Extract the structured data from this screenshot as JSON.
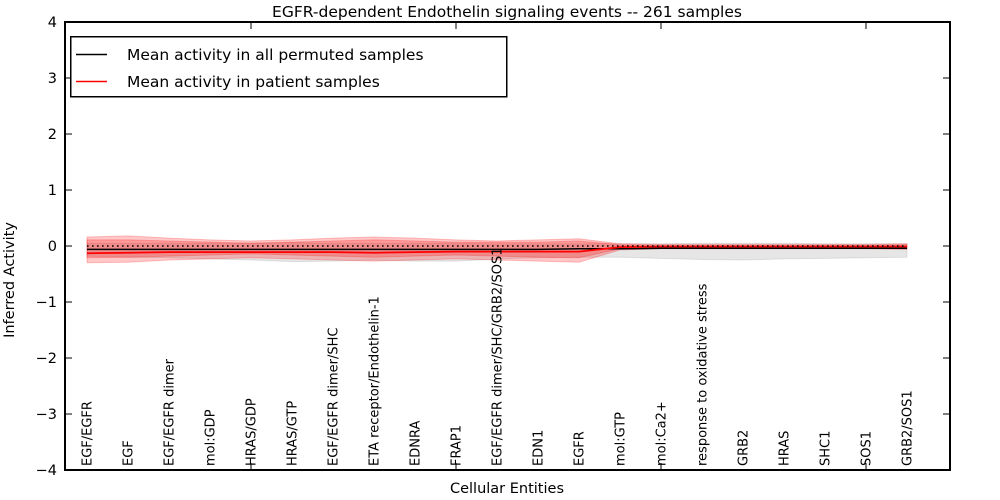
{
  "title": "EGFR-dependent Endothelin signaling events -- 261 samples",
  "xlabel": "Cellular Entities",
  "ylabel": "Inferred Activity",
  "legend": {
    "items": [
      {
        "label": "Mean activity in all permuted samples",
        "color": "#000000"
      },
      {
        "label": "Mean activity in patient samples",
        "color": "#ff0000"
      }
    ]
  },
  "chart_data": {
    "type": "line",
    "title": "EGFR-dependent Endothelin signaling events -- 261 samples",
    "xlabel": "Cellular Entities",
    "ylabel": "Inferred Activity",
    "ylim": [
      -4,
      4
    ],
    "y_ticks": [
      "4",
      "3",
      "2",
      "1",
      "0",
      "−1",
      "−2",
      "−3",
      "−4"
    ],
    "grid": false,
    "legend_position": "upper left",
    "categories": [
      "EGF/EGFR",
      "EGF",
      "EGF/EGFR dimer",
      "mol:GDP",
      "HRAS/GDP",
      "HRAS/GTP",
      "EGF/EGFR dimer/SHC",
      "ETA receptor/Endothelin-1",
      "EDNRA",
      "FRAP1",
      "EGF/EGFR dimer/SHC/GRB2/SOS1",
      "EDN1",
      "EGFR",
      "mol:GTP",
      "mol:Ca2+",
      "response to oxidative stress",
      "GRB2",
      "HRAS",
      "SHC1",
      "SOS1",
      "GRB2/SOS1"
    ],
    "series": [
      {
        "name": "Mean activity in all permuted samples",
        "color": "#000000",
        "values": [
          -0.06,
          -0.06,
          -0.06,
          -0.06,
          -0.06,
          -0.06,
          -0.06,
          -0.06,
          -0.06,
          -0.06,
          -0.06,
          -0.06,
          -0.05,
          -0.05,
          -0.04,
          -0.04,
          -0.04,
          -0.04,
          -0.04,
          -0.04,
          -0.04
        ]
      },
      {
        "name": "Mean activity in patient samples",
        "color": "#ff0000",
        "values": [
          -0.13,
          -0.12,
          -0.11,
          -0.11,
          -0.11,
          -0.11,
          -0.11,
          -0.12,
          -0.11,
          -0.1,
          -0.1,
          -0.1,
          -0.1,
          -0.02,
          -0.01,
          -0.01,
          -0.01,
          -0.01,
          -0.01,
          -0.01,
          -0.01
        ]
      }
    ],
    "bands": [
      {
        "name": "permuted-samples-range",
        "color": "rgba(128,128,128,0.20)",
        "upper": [
          0.05,
          0.05,
          0.05,
          0.05,
          0.05,
          0.06,
          0.05,
          0.05,
          0.05,
          0.05,
          0.04,
          0.04,
          0.04,
          0.04,
          0.04,
          0.05,
          0.05,
          0.05,
          0.04,
          0.04,
          0.04
        ],
        "lower": [
          -0.18,
          -0.2,
          -0.21,
          -0.23,
          -0.25,
          -0.28,
          -0.27,
          -0.25,
          -0.27,
          -0.27,
          -0.23,
          -0.21,
          -0.2,
          -0.2,
          -0.22,
          -0.24,
          -0.25,
          -0.23,
          -0.22,
          -0.21,
          -0.2
        ]
      },
      {
        "name": "patient-samples-range-outer",
        "color": "rgba(255,0,0,0.22)",
        "upper": [
          0.16,
          0.18,
          0.14,
          0.11,
          0.09,
          0.11,
          0.14,
          0.16,
          0.14,
          0.11,
          0.09,
          0.11,
          0.13,
          0.04,
          0.03,
          0.03,
          0.03,
          0.03,
          0.03,
          0.03,
          0.04
        ],
        "lower": [
          -0.3,
          -0.29,
          -0.25,
          -0.23,
          -0.21,
          -0.23,
          -0.25,
          -0.27,
          -0.25,
          -0.23,
          -0.25,
          -0.27,
          -0.29,
          -0.07,
          -0.05,
          -0.05,
          -0.05,
          -0.05,
          -0.05,
          -0.05,
          -0.06
        ]
      },
      {
        "name": "patient-samples-range-inner",
        "color": "rgba(255,0,0,0.22)",
        "upper": [
          0.11,
          0.11,
          0.09,
          0.07,
          0.05,
          0.07,
          0.09,
          0.11,
          0.09,
          0.07,
          0.07,
          0.07,
          0.09,
          0.02,
          0.01,
          0.01,
          0.01,
          0.01,
          0.01,
          0.01,
          0.02
        ],
        "lower": [
          -0.21,
          -0.2,
          -0.18,
          -0.16,
          -0.14,
          -0.16,
          -0.18,
          -0.2,
          -0.18,
          -0.16,
          -0.18,
          -0.2,
          -0.21,
          -0.05,
          -0.04,
          -0.04,
          -0.04,
          -0.04,
          -0.04,
          -0.04,
          -0.05
        ]
      }
    ],
    "zero_line": {
      "y": 0,
      "style": "dotted",
      "color": "#000000"
    },
    "top_bottom_tick_indices": [
      4,
      9,
      14,
      19
    ]
  }
}
